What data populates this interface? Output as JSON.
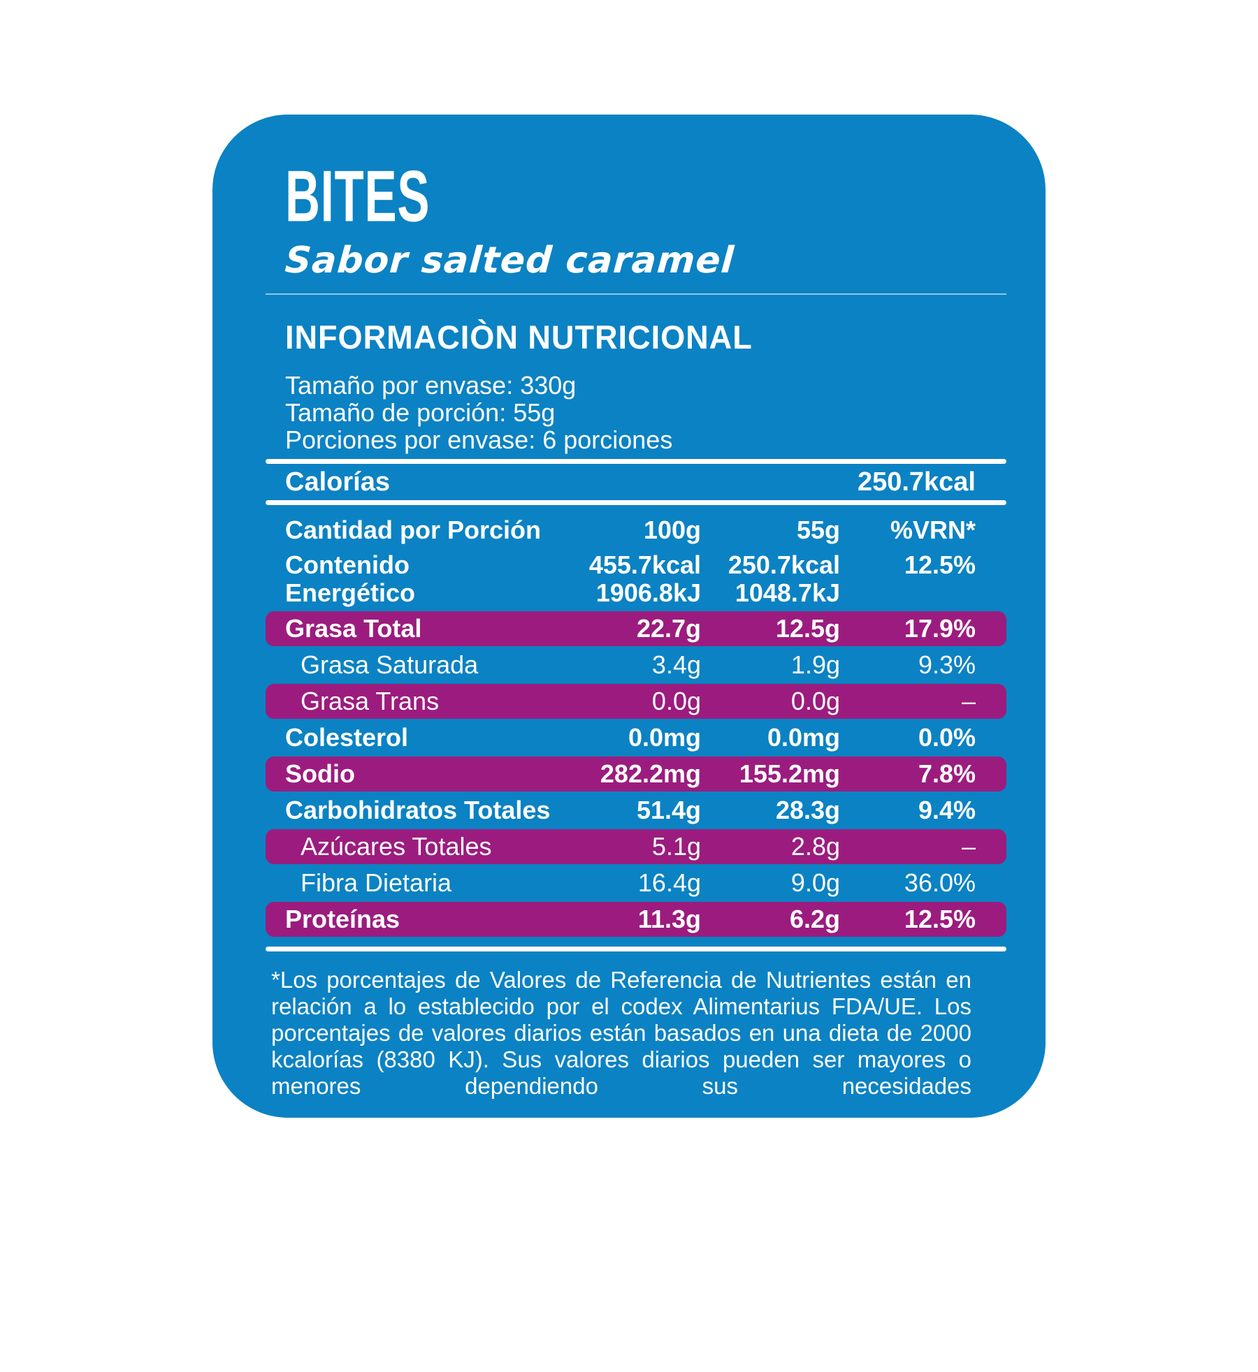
{
  "product": {
    "title": "BITES",
    "subtitle": "Sabor salted caramel"
  },
  "heading": "INFORMACIÒN NUTRICIONAL",
  "serving_info": [
    "Tamaño por envase: 330g",
    "Tamaño de porción: 55g",
    "Porciones por envase: 6 porciones"
  ],
  "calories_row": {
    "label": "Calorías",
    "value": "250.7kcal"
  },
  "table": {
    "header": {
      "label": "Cantidad por Porción",
      "col_100g": "100g",
      "col_55g": "55g",
      "col_vrn": "%VRN*"
    },
    "energy_row": {
      "label_line1": "Contenido",
      "label_line2": "Energético",
      "per100_line1": "455.7kcal",
      "per100_line2": "1906.8kJ",
      "per55_line1": "250.7kcal",
      "per55_line2": "1048.7kJ",
      "vrn": "12.5%"
    },
    "rows": [
      {
        "label": "Grasa Total",
        "per100": "22.7g",
        "per55": "12.5g",
        "vrn": "17.9%",
        "highlight": true,
        "bold": true,
        "indent": false
      },
      {
        "label": "Grasa Saturada",
        "per100": "3.4g",
        "per55": "1.9g",
        "vrn": "9.3%",
        "highlight": false,
        "bold": false,
        "indent": true
      },
      {
        "label": "Grasa Trans",
        "per100": "0.0g",
        "per55": "0.0g",
        "vrn": "–",
        "highlight": true,
        "bold": false,
        "indent": true
      },
      {
        "label": "Colesterol",
        "per100": "0.0mg",
        "per55": "0.0mg",
        "vrn": "0.0%",
        "highlight": false,
        "bold": true,
        "indent": false
      },
      {
        "label": "Sodio",
        "per100": "282.2mg",
        "per55": "155.2mg",
        "vrn": "7.8%",
        "highlight": true,
        "bold": true,
        "indent": false
      },
      {
        "label": "Carbohidratos Totales",
        "per100": "51.4g",
        "per55": "28.3g",
        "vrn": "9.4%",
        "highlight": false,
        "bold": true,
        "indent": false
      },
      {
        "label": "Azúcares Totales",
        "per100": "5.1g",
        "per55": "2.8g",
        "vrn": "–",
        "highlight": true,
        "bold": false,
        "indent": true
      },
      {
        "label": "Fibra Dietaria",
        "per100": "16.4g",
        "per55": "9.0g",
        "vrn": "36.0%",
        "highlight": false,
        "bold": false,
        "indent": true
      },
      {
        "label": "Proteínas",
        "per100": "11.3g",
        "per55": "6.2g",
        "vrn": "12.5%",
        "highlight": true,
        "bold": true,
        "indent": false
      }
    ]
  },
  "footnote": "*Los porcentajes de Valores de Referencia de Nutrientes están en relación a lo establecido por el codex Alimentarius FDA/UE. Los porcentajes de valores diarios están basados en una dieta de 2000 kcalorías (8380 KJ). Sus valores diarios pueden ser mayores o menores dependiendo sus necesidades",
  "colors": {
    "page_background": "#ffffff",
    "card_blue": "#0b82c3",
    "highlight_purple": "#9b1c7e",
    "text_white": "#ffffff"
  }
}
